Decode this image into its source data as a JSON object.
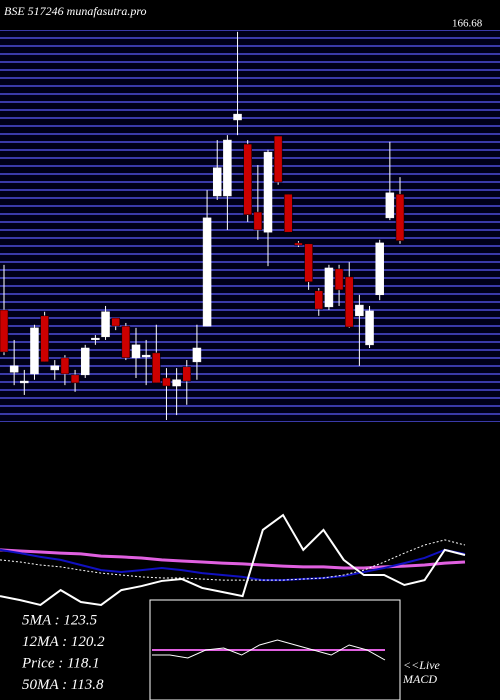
{
  "chart_data": [
    {
      "type": "candlestick",
      "title": "BSE 517246 munafasutra.pro",
      "top_label": "166.68",
      "ylim": [
        78,
        167
      ],
      "up_color": "#ffffff",
      "down_color": "#cc0000",
      "open": [
        102.6,
        88.7,
        86.3,
        88.3,
        101.3,
        89.2,
        91.9,
        88.1,
        88.1,
        96.1,
        96.6,
        100.8,
        99.0,
        91.9,
        92.1,
        93.0,
        87.4,
        85.6,
        89.9,
        91.0,
        99.0,
        128.1,
        128.1,
        145.1,
        139.7,
        124.5,
        120.0,
        141.5,
        128.5,
        117.6,
        117.4,
        106.9,
        103.3,
        111.8,
        110.0,
        101.3,
        94.8,
        106.0,
        123.2,
        128.5
      ],
      "high": [
        112.7,
        95.9,
        89.2,
        99.3,
        102.2,
        91.4,
        92.5,
        89.2,
        94.8,
        97.0,
        103.5,
        100.8,
        99.7,
        98.6,
        95.9,
        99.3,
        89.6,
        89.6,
        91.4,
        99.3,
        129.4,
        140.6,
        141.7,
        164.8,
        140.6,
        135.0,
        138.4,
        141.5,
        128.5,
        118.0,
        117.4,
        107.5,
        112.7,
        112.7,
        113.3,
        106.0,
        103.5,
        118.3,
        140.2,
        132.3
      ],
      "low": [
        92.5,
        85.8,
        83.6,
        87.0,
        91.0,
        87.0,
        85.8,
        84.3,
        87.4,
        94.8,
        95.9,
        98.1,
        91.4,
        87.4,
        85.8,
        86.3,
        78.0,
        79.1,
        81.4,
        87.0,
        99.0,
        127.2,
        120.5,
        141.7,
        122.3,
        118.3,
        112.4,
        130.6,
        120.0,
        116.7,
        107.1,
        101.3,
        102.6,
        103.5,
        98.6,
        90.1,
        94.1,
        104.8,
        122.7,
        117.4
      ],
      "close": [
        93.2,
        90.1,
        86.7,
        98.6,
        91.0,
        90.1,
        88.3,
        86.3,
        94.1,
        96.3,
        102.2,
        99.0,
        91.9,
        94.8,
        92.5,
        86.3,
        85.6,
        87.0,
        86.7,
        94.1,
        123.2,
        134.4,
        140.6,
        146.4,
        123.9,
        120.5,
        137.9,
        131.2,
        120.0,
        117.1,
        108.9,
        102.8,
        112.0,
        107.1,
        98.8,
        103.7,
        102.4,
        117.6,
        128.8,
        118.1
      ]
    },
    {
      "type": "line",
      "ylim": [
        0,
        100
      ],
      "legend": [
        "5MA : 123.5",
        "12MA : 120.2",
        "Price  : 118.1",
        "50MA : 113.8"
      ],
      "series": [
        {
          "color": "#e060e0",
          "width": 3,
          "values": [
            55.6,
            55.2,
            54.8,
            54.4,
            54.1,
            53.3,
            53.0,
            52.6,
            51.9,
            51.5,
            51.1,
            50.7,
            50.4,
            50.0,
            49.6,
            49.3,
            49.3,
            48.9,
            48.9,
            49.3,
            49.6,
            50.0,
            50.7,
            51.1
          ]
        },
        {
          "color": "#1010c0",
          "width": 2,
          "values": [
            55.6,
            54.4,
            53.0,
            51.9,
            50.0,
            48.1,
            47.4,
            48.1,
            48.9,
            48.1,
            47.0,
            46.3,
            45.6,
            44.4,
            44.4,
            44.8,
            45.2,
            45.9,
            47.4,
            48.9,
            50.7,
            52.6,
            55.6,
            54.1
          ]
        },
        {
          "color": "#ffffff",
          "width": 2,
          "values": [
            38.5,
            37.0,
            35.2,
            40.7,
            36.3,
            35.2,
            40.7,
            42.2,
            44.1,
            44.8,
            41.5,
            40.0,
            38.5,
            63.0,
            68.5,
            55.6,
            63.0,
            51.9,
            46.3,
            46.3,
            42.6,
            44.4,
            55.6,
            53.7
          ]
        },
        {
          "color": "#ffffff",
          "width": 1,
          "dashed": true,
          "values": [
            51.9,
            51.1,
            50.0,
            49.3,
            48.1,
            47.0,
            46.3,
            45.6,
            45.2,
            45.2,
            44.8,
            44.4,
            44.4,
            44.4,
            44.4,
            44.8,
            45.2,
            46.3,
            48.1,
            51.1,
            54.4,
            57.4,
            59.3,
            57.4
          ]
        }
      ]
    },
    {
      "type": "line",
      "title": "MACD",
      "note": "<<Live",
      "ylim": [
        0,
        100
      ],
      "series": [
        {
          "color": "#e060e0",
          "width": 2,
          "values": [
            50,
            50,
            50,
            50,
            50,
            50,
            50,
            50,
            50,
            50,
            50,
            50,
            50,
            50
          ]
        },
        {
          "color": "#ffffff",
          "width": 1,
          "values": [
            45,
            45,
            42,
            50,
            52,
            45,
            55,
            60,
            55,
            50,
            45,
            55,
            50,
            40
          ]
        }
      ]
    }
  ]
}
